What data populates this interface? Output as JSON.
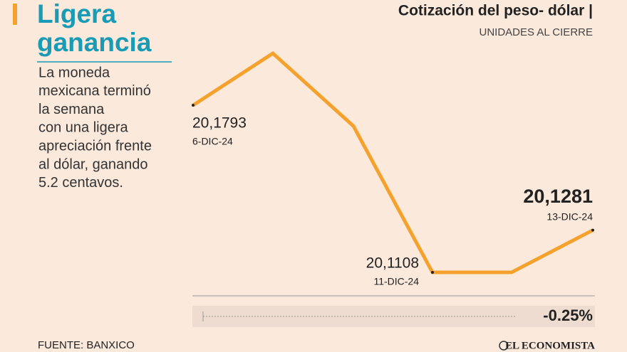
{
  "headline": "Ligera ganancia",
  "body": [
    "La moneda",
    "mexicana terminó",
    "la semana",
    "con una ligera",
    "apreciación frente",
    "al dólar, ganando",
    "5.2 centavos."
  ],
  "source": "FUENTE: BANXICO",
  "brand": "EL ECONOMISTA",
  "chart_data": {
    "type": "line",
    "title": "Cotización del peso- dólar |",
    "subtitle": "UNIDADES AL CIERRE",
    "categories": [
      "6-DIC-24",
      null,
      null,
      "11-DIC-24",
      null,
      "13-DIC-24"
    ],
    "values": [
      20.1793,
      20.2006,
      20.1708,
      20.1108,
      20.1108,
      20.1281
    ],
    "value_labels": [
      "20,1793",
      null,
      null,
      "20,1108",
      null,
      "20,1281"
    ],
    "color": "#f4a22d",
    "change_label": "-0.25%"
  }
}
